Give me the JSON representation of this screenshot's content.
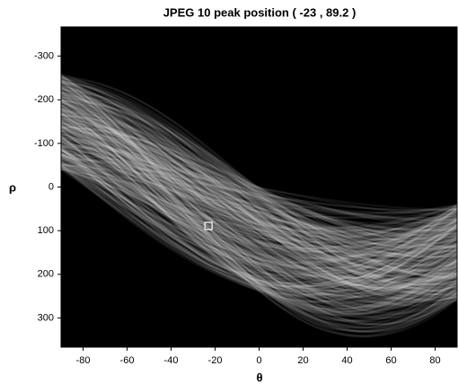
{
  "chart_data": {
    "type": "heatmap",
    "title": "JPEG 10 peak position ( -23 , 89.2 )",
    "xlabel": "θ",
    "ylabel": "ρ",
    "xlim": [
      -90,
      90
    ],
    "xticks": [
      -80,
      -60,
      -40,
      -20,
      0,
      20,
      40,
      60,
      80
    ],
    "ylim": [
      367,
      -367
    ],
    "yticks": [
      -300,
      -200,
      -100,
      0,
      100,
      200,
      300
    ],
    "peak": {
      "x": -23,
      "y": 89.2
    },
    "marker_color": "#ffffff"
  }
}
